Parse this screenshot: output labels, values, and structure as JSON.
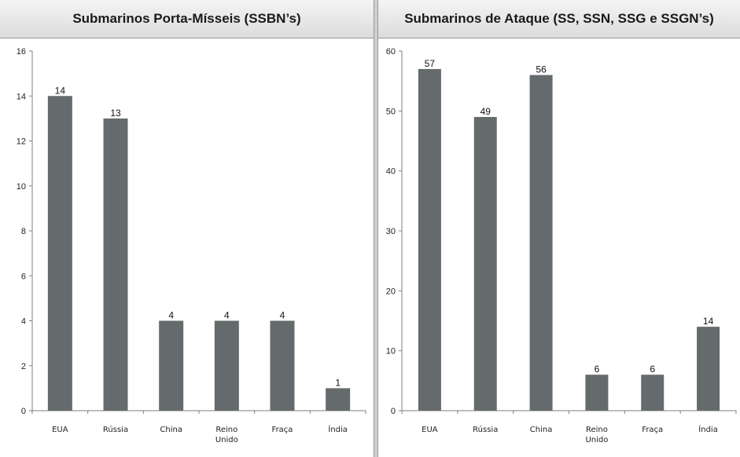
{
  "colors": {
    "bar": "#656b6c",
    "axis": "#7f7f7f"
  },
  "chart_data": [
    {
      "type": "bar",
      "title": "Submarinos Porta-Mísseis (SSBN’s)",
      "categories": [
        [
          "EUA"
        ],
        [
          "Rússia"
        ],
        [
          "China"
        ],
        [
          "Reino",
          "Unido"
        ],
        [
          "Fraça"
        ],
        [
          "Índia"
        ]
      ],
      "values": [
        14,
        13,
        4,
        4,
        4,
        1
      ],
      "ylim": [
        0,
        16
      ],
      "yticks": [
        0,
        2,
        4,
        6,
        8,
        10,
        12,
        14,
        16
      ],
      "grid": false,
      "legend": "none"
    },
    {
      "type": "bar",
      "title": "Submarinos de Ataque (SS, SSN, SSG e SSGN’s)",
      "categories": [
        [
          "EUA"
        ],
        [
          "Rússia"
        ],
        [
          "China"
        ],
        [
          "Reino",
          "Unido"
        ],
        [
          "Fraça"
        ],
        [
          "Índia"
        ]
      ],
      "values": [
        57,
        49,
        56,
        6,
        6,
        14
      ],
      "ylim": [
        0,
        60
      ],
      "yticks": [
        0,
        10,
        20,
        30,
        40,
        50,
        60
      ],
      "grid": false,
      "legend": "none"
    }
  ]
}
